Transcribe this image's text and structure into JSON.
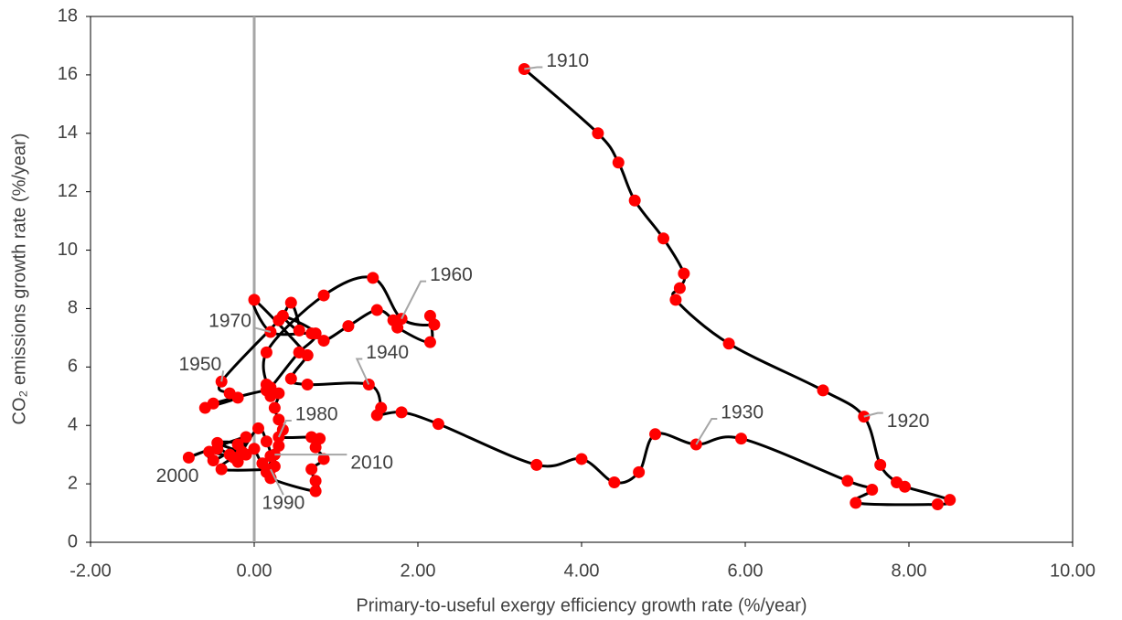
{
  "chart_data": {
    "type": "scatter",
    "x_label": "Primary-to-useful exergy efficiency growth rate (%/year)",
    "y_label": "CO₂ emissions growth rate (%/year)",
    "xlim": [
      -2,
      10
    ],
    "xticks": [
      {
        "value": -2,
        "label": "-2.00"
      },
      {
        "value": 0,
        "label": "0.00"
      },
      {
        "value": 2,
        "label": "2.00"
      },
      {
        "value": 4,
        "label": "4.00"
      },
      {
        "value": 6,
        "label": "6.00"
      },
      {
        "value": 8,
        "label": "8.00"
      },
      {
        "value": 10,
        "label": "10.00"
      }
    ],
    "ylim": [
      0,
      18
    ],
    "yticks": [
      0,
      2,
      4,
      6,
      8,
      10,
      12,
      14,
      16,
      18
    ],
    "color": "#ff0000",
    "line_color": "#000000",
    "x": [
      3.3,
      4.2,
      4.45,
      4.65,
      5.0,
      5.25,
      5.2,
      5.15,
      5.8,
      6.95,
      7.45,
      7.65,
      7.85,
      7.95,
      8.5,
      8.35,
      7.35,
      7.55,
      7.25,
      5.95,
      5.4,
      4.9,
      4.7,
      4.4,
      4.0,
      3.45,
      2.25,
      1.8,
      1.5,
      1.55,
      1.4,
      0.65,
      0.45,
      0.65,
      0.55,
      0.75,
      0.35,
      0.55,
      0.45,
      0.3,
      -0.4,
      -0.3,
      -0.2,
      -0.6,
      -0.5,
      0.15,
      0.2,
      0.15,
      0.85,
      1.45,
      1.8,
      2.2,
      2.15,
      2.15,
      1.75,
      1.7,
      1.5,
      1.15,
      0.85,
      0.7,
      0.2,
      0.0,
      0.65,
      0.55,
      0.2,
      0.15,
      0.3,
      0.25,
      0.3,
      0.35,
      0.3,
      0.7,
      0.8,
      0.75,
      0.85,
      0.7,
      0.75,
      0.75,
      0.2,
      0.25,
      0.2,
      -0.4,
      -0.25,
      -0.1,
      -0.45,
      -0.2,
      -0.5,
      -0.55,
      -0.3,
      -0.1,
      -0.8,
      -0.45,
      -0.2,
      -0.15,
      0.05,
      0.15,
      0.2,
      0.1,
      0.3,
      0.15,
      0.25,
      0.2,
      0.0
    ],
    "values": [
      16.2,
      14.0,
      13.0,
      11.7,
      10.4,
      9.2,
      8.7,
      8.3,
      6.8,
      5.2,
      4.3,
      2.65,
      2.05,
      1.9,
      1.45,
      1.3,
      1.35,
      1.8,
      2.1,
      3.55,
      3.35,
      3.7,
      2.4,
      2.05,
      2.85,
      2.65,
      4.05,
      4.45,
      4.35,
      4.6,
      5.4,
      5.4,
      5.6,
      6.4,
      6.5,
      7.15,
      7.75,
      7.25,
      8.2,
      7.6,
      5.5,
      5.1,
      4.95,
      4.6,
      4.75,
      5.2,
      5.0,
      6.5,
      8.45,
      9.05,
      7.65,
      7.45,
      7.75,
      6.85,
      7.35,
      7.6,
      7.95,
      7.4,
      6.9,
      7.15,
      7.2,
      8.3,
      6.4,
      6.5,
      5.3,
      5.4,
      5.1,
      4.6,
      4.2,
      3.85,
      3.6,
      3.6,
      3.55,
      3.25,
      2.85,
      2.5,
      2.1,
      1.75,
      2.2,
      2.6,
      2.5,
      2.5,
      2.9,
      3.0,
      3.4,
      3.35,
      2.8,
      3.1,
      3.0,
      3.6,
      2.9,
      3.2,
      2.75,
      3.1,
      3.9,
      3.45,
      2.95,
      2.7,
      3.3,
      2.4,
      3.0,
      2.2,
      3.2
    ],
    "annotations": [
      {
        "text": "1910",
        "x": 3.3,
        "y": 16.2
      },
      {
        "text": "1920",
        "x": 7.45,
        "y": 4.3
      },
      {
        "text": "1930",
        "x": 5.4,
        "y": 3.35
      },
      {
        "text": "1940",
        "x": 1.4,
        "y": 5.4
      },
      {
        "text": "1950",
        "x": -0.4,
        "y": 5.5
      },
      {
        "text": "1960",
        "x": 1.8,
        "y": 7.65
      },
      {
        "text": "1970",
        "x": 0.2,
        "y": 7.2
      },
      {
        "text": "1980",
        "x": 0.3,
        "y": 3.6
      },
      {
        "text": "1990",
        "x": 0.2,
        "y": 2.5
      },
      {
        "text": "2000",
        "x": -0.8,
        "y": 2.9
      },
      {
        "text": "2010",
        "x": 0.25,
        "y": 3.0
      }
    ]
  }
}
